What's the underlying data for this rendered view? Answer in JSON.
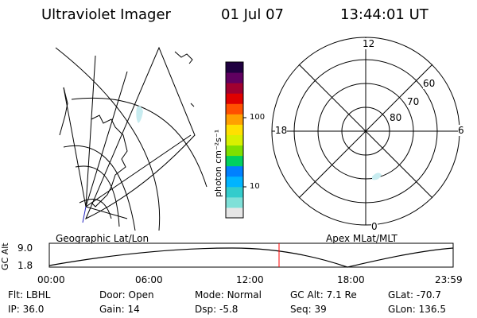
{
  "header": {
    "instrument": "Ultraviolet Imager",
    "date": "01 Jul 07",
    "time": "13:44:01 UT"
  },
  "colorbar": {
    "unit_label": "photon cm⁻²s⁻¹",
    "ticks": [
      "100",
      "10"
    ],
    "colors": [
      "#e6e6e6",
      "#7fe0d8",
      "#33cccc",
      "#00b4ff",
      "#0080ff",
      "#00d060",
      "#7fe000",
      "#d8f000",
      "#ffe000",
      "#ffa000",
      "#ff5000",
      "#e00000",
      "#a00030",
      "#600060",
      "#200040"
    ]
  },
  "left_panel": {
    "caption": "Geographic Lat/Lon"
  },
  "right_panel": {
    "caption": "Apex MLat/MLT",
    "mlt_labels": {
      "top": "12",
      "bottom": "0",
      "left": "18",
      "right": "6"
    },
    "lat_labels": [
      "60",
      "70",
      "80"
    ]
  },
  "altitude_plot": {
    "ylabel": "GC Alt",
    "yticks": [
      "9.0",
      "1.8"
    ],
    "xticks": [
      "00:00",
      "06:00",
      "12:00",
      "18:00",
      "23:59"
    ],
    "current_time_marker": "13:44",
    "marker_color": "#ff0000"
  },
  "info_rows": [
    [
      {
        "label": "Flt:",
        "value": "LBHL"
      },
      {
        "label": "Door:",
        "value": "Open"
      },
      {
        "label": "Mode:",
        "value": "Normal"
      },
      {
        "label": "GC Alt:",
        "value": "7.1 Re"
      },
      {
        "label": "GLat:",
        "value": "-70.7"
      }
    ],
    [
      {
        "label": "IP:",
        "value": "36.0"
      },
      {
        "label": "Gain:",
        "value": "14"
      },
      {
        "label": "Dsp:",
        "value": "-5.8"
      },
      {
        "label": "Seq:",
        "value": "39"
      },
      {
        "label": "GLon:",
        "value": "136.5"
      }
    ]
  ]
}
